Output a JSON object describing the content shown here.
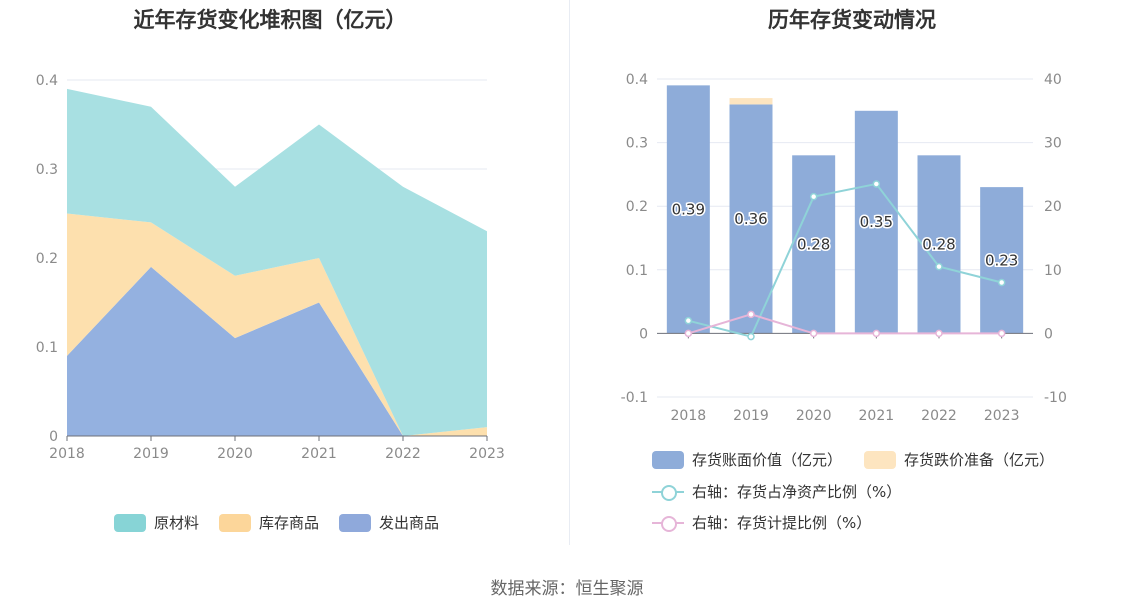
{
  "titles": {
    "left": "近年存货变化堆积图（亿元）",
    "right": "历年存货变动情况"
  },
  "source": "数据来源：恒生聚源",
  "chart_data": [
    {
      "type": "area",
      "stacked": true,
      "title": "近年存货变化堆积图（亿元）",
      "x": [
        "2018",
        "2019",
        "2020",
        "2021",
        "2022",
        "2023"
      ],
      "ylim": [
        0,
        0.4
      ],
      "yticks": [
        0,
        0.1,
        0.2,
        0.3,
        0.4
      ],
      "grid": true,
      "legend_position": "bottom",
      "series": [
        {
          "name": "发出商品",
          "color": "#94b1e0",
          "values": [
            0.09,
            0.19,
            0.11,
            0.15,
            0,
            0
          ]
        },
        {
          "name": "库存商品",
          "color": "#fde0ae",
          "values": [
            0.16,
            0.05,
            0.07,
            0.05,
            0,
            0.01
          ]
        },
        {
          "name": "原材料",
          "color": "#a8e0e2",
          "values": [
            0.14,
            0.13,
            0.1,
            0.15,
            0.28,
            0.22
          ]
        }
      ],
      "legend": [
        {
          "name": "原材料",
          "color": "#87d4d6"
        },
        {
          "name": "库存商品",
          "color": "#fcd69a"
        },
        {
          "name": "发出商品",
          "color": "#8fa9db"
        }
      ]
    },
    {
      "type": "bar",
      "title": "历年存货变动情况",
      "x": [
        "2018",
        "2019",
        "2020",
        "2021",
        "2022",
        "2023"
      ],
      "ylim": [
        -0.1,
        0.4
      ],
      "yticks": [
        -0.1,
        0,
        0.1,
        0.2,
        0.3,
        0.4
      ],
      "ytick_labels": [
        "-0.1",
        "0",
        "0.1",
        "0.2",
        "0.3",
        "0.4"
      ],
      "y2lim": [
        -10,
        40
      ],
      "y2ticks": [
        -10,
        0,
        10,
        20,
        30,
        40
      ],
      "grid": true,
      "legend_position": "bottom",
      "series": [
        {
          "name": "存货账面价值（亿元）",
          "kind": "bar",
          "color": "#8eacd9",
          "values": [
            0.39,
            0.36,
            0.28,
            0.35,
            0.28,
            0.23
          ],
          "labels": [
            "0.39",
            "0.36",
            "0.28",
            "0.35",
            "0.28",
            "0.23"
          ]
        },
        {
          "name": "存货跌价准备（亿元）",
          "kind": "bar",
          "stacked": true,
          "color": "#fde5c0",
          "values": [
            0,
            0.01,
            0,
            0,
            0,
            0
          ]
        },
        {
          "name": "右轴：存货占净资产比例（%）",
          "kind": "line",
          "axis": "right",
          "color": "#8fd3d8",
          "values": [
            2,
            -0.5,
            21.5,
            23.5,
            10.5,
            8
          ]
        },
        {
          "name": "右轴：存货计提比例（%）",
          "kind": "line",
          "axis": "right",
          "color": "#e6b5d8",
          "values": [
            0,
            3,
            0,
            0,
            0,
            0
          ]
        }
      ]
    }
  ]
}
